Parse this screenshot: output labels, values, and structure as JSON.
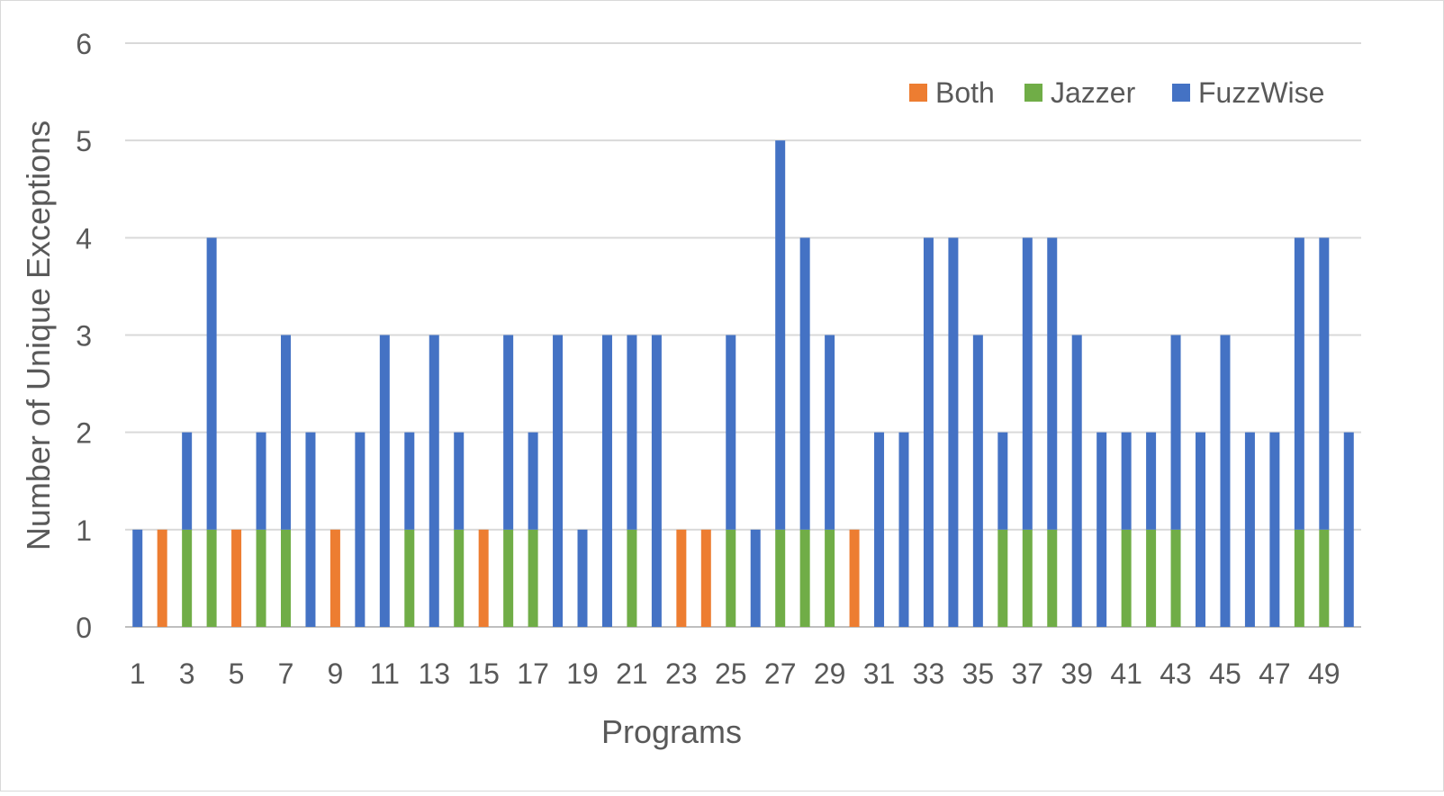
{
  "chart_data": {
    "type": "bar",
    "stacked": true,
    "xlabel": "Programs",
    "ylabel": "Number of Unique Exceptions",
    "ylim": [
      0,
      6
    ],
    "yticks": [
      0,
      1,
      2,
      3,
      4,
      5,
      6
    ],
    "grid": true,
    "legend_position": "top-right",
    "categories": [
      1,
      2,
      3,
      4,
      5,
      6,
      7,
      8,
      9,
      10,
      11,
      12,
      13,
      14,
      15,
      16,
      17,
      18,
      19,
      20,
      21,
      22,
      23,
      24,
      25,
      26,
      27,
      28,
      29,
      30,
      31,
      32,
      33,
      34,
      35,
      36,
      37,
      38,
      39,
      40,
      41,
      42,
      43,
      44,
      45,
      46,
      47,
      48,
      49,
      50
    ],
    "xtick_labels": [
      "1",
      "3",
      "5",
      "7",
      "9",
      "11",
      "13",
      "15",
      "17",
      "19",
      "21",
      "23",
      "25",
      "27",
      "29",
      "31",
      "33",
      "35",
      "37",
      "39",
      "41",
      "43",
      "45",
      "47",
      "49"
    ],
    "series": [
      {
        "name": "Both",
        "color": "#ed7d31",
        "values": [
          0,
          1,
          0,
          0,
          1,
          0,
          0,
          0,
          1,
          0,
          0,
          0,
          0,
          0,
          1,
          0,
          0,
          0,
          0,
          0,
          0,
          0,
          1,
          1,
          0,
          0,
          0,
          0,
          0,
          1,
          0,
          0,
          0,
          0,
          0,
          0,
          0,
          0,
          0,
          0,
          0,
          0,
          0,
          0,
          0,
          0,
          0,
          0,
          0,
          0
        ]
      },
      {
        "name": "Jazzer",
        "color": "#70ad47",
        "values": [
          0,
          0,
          1,
          1,
          0,
          1,
          1,
          0,
          0,
          0,
          0,
          1,
          0,
          1,
          0,
          1,
          1,
          0,
          0,
          0,
          1,
          0,
          0,
          0,
          1,
          0,
          1,
          1,
          1,
          0,
          0,
          0,
          0,
          0,
          0,
          1,
          1,
          1,
          0,
          0,
          1,
          1,
          1,
          0,
          0,
          0,
          0,
          1,
          1,
          0
        ]
      },
      {
        "name": "FuzzWise",
        "color": "#4472c4",
        "values": [
          1,
          0,
          1,
          3,
          0,
          1,
          2,
          2,
          0,
          2,
          3,
          1,
          3,
          1,
          0,
          2,
          1,
          3,
          1,
          3,
          2,
          3,
          0,
          0,
          2,
          1,
          4,
          3,
          2,
          0,
          2,
          2,
          4,
          4,
          3,
          1,
          3,
          3,
          3,
          2,
          1,
          1,
          2,
          2,
          3,
          2,
          2,
          3,
          3,
          2
        ]
      }
    ]
  }
}
